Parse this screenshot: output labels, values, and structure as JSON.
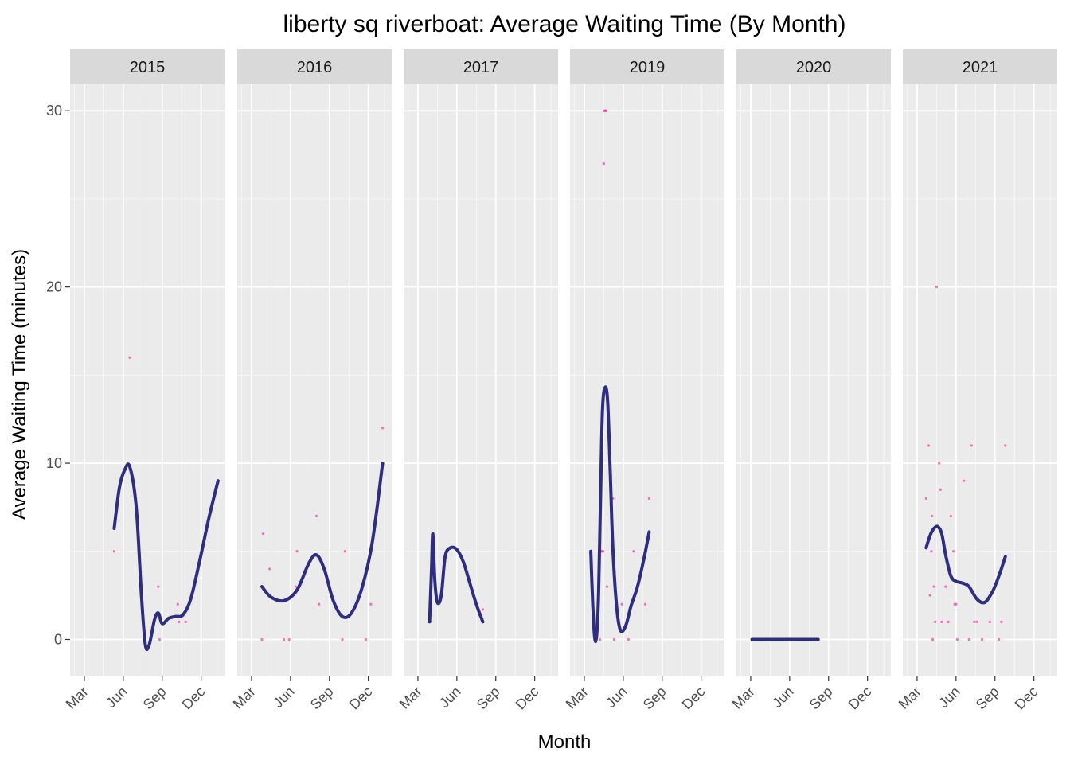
{
  "chart_data": {
    "type": "scatter",
    "title": "liberty sq riverboat: Average Waiting Time (By Month)",
    "xlabel": "Month",
    "ylabel": "Average Waiting Time (minutes)",
    "x_tick_labels": [
      "Mar",
      "Jun",
      "Sep",
      "Dec"
    ],
    "y_ticks": [
      0,
      10,
      20,
      30
    ],
    "ylim": [
      -2.1,
      31.5
    ],
    "grid": true,
    "colors": {
      "panel_bg": "#ebebeb",
      "strip_bg": "#d9d9d9",
      "gridline": "#ffffff",
      "point": "#ff3ea5",
      "smooth_line": "#2e2d7f"
    },
    "panels": [
      {
        "year": "2015",
        "points": [
          [
            2.3,
            5
          ],
          [
            3.5,
            16
          ],
          [
            5.7,
            3
          ],
          [
            5.8,
            0
          ],
          [
            7.2,
            2
          ],
          [
            7.3,
            1
          ],
          [
            7.8,
            1
          ],
          [
            10.3,
            9
          ]
        ],
        "smooth": [
          [
            2.3,
            6.3
          ],
          [
            2.7,
            8.6
          ],
          [
            3.1,
            9.6
          ],
          [
            3.5,
            9.8
          ],
          [
            4.0,
            7.5
          ],
          [
            4.4,
            2.5
          ],
          [
            4.7,
            -0.3
          ],
          [
            5.0,
            -0.3
          ],
          [
            5.4,
            1.1
          ],
          [
            5.7,
            1.5
          ],
          [
            6.0,
            0.9
          ],
          [
            6.5,
            1.2
          ],
          [
            7.0,
            1.3
          ],
          [
            7.6,
            1.4
          ],
          [
            8.2,
            2.3
          ],
          [
            8.9,
            4.5
          ],
          [
            9.6,
            6.9
          ],
          [
            10.3,
            9
          ]
        ]
      },
      {
        "year": "2016",
        "points": [
          [
            0.8,
            0
          ],
          [
            0.9,
            6
          ],
          [
            1.4,
            4
          ],
          [
            2.5,
            0
          ],
          [
            2.9,
            0
          ],
          [
            3.4,
            3
          ],
          [
            3.5,
            5
          ],
          [
            5.0,
            7
          ],
          [
            5.2,
            2
          ],
          [
            7.0,
            0
          ],
          [
            7.2,
            5
          ],
          [
            8.8,
            0
          ],
          [
            9.2,
            2
          ],
          [
            10.1,
            12
          ]
        ],
        "smooth": [
          [
            0.8,
            3
          ],
          [
            1.5,
            2.4
          ],
          [
            2.5,
            2.2
          ],
          [
            3.5,
            2.8
          ],
          [
            4.4,
            4.3
          ],
          [
            5.0,
            4.8
          ],
          [
            5.6,
            4.0
          ],
          [
            6.3,
            2.2
          ],
          [
            7.0,
            1.3
          ],
          [
            7.7,
            1.5
          ],
          [
            8.5,
            2.9
          ],
          [
            9.3,
            5.5
          ],
          [
            10.1,
            10
          ]
        ]
      },
      {
        "year": "2017",
        "points": [
          [
            0.9,
            1
          ],
          [
            1.2,
            5
          ],
          [
            5.0,
            1.7
          ]
        ],
        "smooth": [
          [
            0.9,
            1
          ],
          [
            1.05,
            4.0
          ],
          [
            1.15,
            6.0
          ],
          [
            1.3,
            3.4
          ],
          [
            1.5,
            2.1
          ],
          [
            1.8,
            2.5
          ],
          [
            2.1,
            4.7
          ],
          [
            2.5,
            5.2
          ],
          [
            3.0,
            5.1
          ],
          [
            3.5,
            4.4
          ],
          [
            4.0,
            3.2
          ],
          [
            4.5,
            2.0
          ],
          [
            5.0,
            1.0
          ]
        ]
      },
      {
        "year": "2019",
        "points": [
          [
            1.1,
            2
          ],
          [
            1.2,
            0
          ],
          [
            1.25,
            5
          ],
          [
            1.3,
            5
          ],
          [
            1.35,
            5
          ],
          [
            1.4,
            5
          ],
          [
            1.45,
            5
          ],
          [
            1.5,
            27
          ],
          [
            1.55,
            30
          ],
          [
            1.6,
            30
          ],
          [
            1.65,
            30
          ],
          [
            1.7,
            30
          ],
          [
            1.75,
            3
          ],
          [
            2.2,
            8
          ],
          [
            2.3,
            0
          ],
          [
            2.9,
            2
          ],
          [
            3.4,
            0
          ],
          [
            3.8,
            5
          ],
          [
            4.7,
            2
          ],
          [
            5.0,
            8
          ]
        ],
        "smooth": [
          [
            0.5,
            5
          ],
          [
            0.65,
            2.0
          ],
          [
            0.8,
            0.1
          ],
          [
            0.95,
            0.2
          ],
          [
            1.1,
            2.6
          ],
          [
            1.25,
            8.0
          ],
          [
            1.4,
            13.0
          ],
          [
            1.6,
            14.3
          ],
          [
            1.8,
            13.5
          ],
          [
            2.0,
            9.5
          ],
          [
            2.2,
            5.2
          ],
          [
            2.5,
            1.8
          ],
          [
            2.8,
            0.5
          ],
          [
            3.2,
            0.8
          ],
          [
            3.6,
            1.9
          ],
          [
            4.1,
            3.0
          ],
          [
            4.6,
            4.6
          ],
          [
            5.0,
            6.1
          ]
        ]
      },
      {
        "year": "2020",
        "points": [
          [
            0.1,
            0
          ],
          [
            5.2,
            0
          ]
        ],
        "smooth": [
          [
            0.1,
            0
          ],
          [
            5.2,
            0
          ]
        ]
      },
      {
        "year": "2021",
        "points": [
          [
            0.7,
            8
          ],
          [
            0.9,
            11
          ],
          [
            1.0,
            2.5
          ],
          [
            1.1,
            5
          ],
          [
            1.15,
            7
          ],
          [
            1.2,
            0
          ],
          [
            1.3,
            3
          ],
          [
            1.4,
            1
          ],
          [
            1.5,
            20
          ],
          [
            1.7,
            10
          ],
          [
            1.8,
            8.5
          ],
          [
            1.9,
            1
          ],
          [
            2.2,
            3
          ],
          [
            2.4,
            1
          ],
          [
            2.6,
            7
          ],
          [
            2.8,
            5
          ],
          [
            2.9,
            2
          ],
          [
            3.0,
            2
          ],
          [
            3.1,
            0
          ],
          [
            3.6,
            9
          ],
          [
            4.0,
            0
          ],
          [
            4.2,
            11
          ],
          [
            4.4,
            1
          ],
          [
            4.6,
            1
          ],
          [
            5.0,
            0
          ],
          [
            5.6,
            1
          ],
          [
            6.3,
            0
          ],
          [
            6.5,
            1
          ],
          [
            6.8,
            11
          ]
        ],
        "smooth": [
          [
            0.7,
            5.2
          ],
          [
            1.0,
            5.9
          ],
          [
            1.3,
            6.3
          ],
          [
            1.6,
            6.4
          ],
          [
            1.9,
            6.0
          ],
          [
            2.2,
            4.8
          ],
          [
            2.6,
            3.6
          ],
          [
            3.0,
            3.3
          ],
          [
            3.5,
            3.2
          ],
          [
            4.0,
            3.0
          ],
          [
            4.6,
            2.3
          ],
          [
            5.2,
            2.1
          ],
          [
            5.8,
            2.7
          ],
          [
            6.3,
            3.6
          ],
          [
            6.8,
            4.7
          ]
        ]
      }
    ]
  }
}
